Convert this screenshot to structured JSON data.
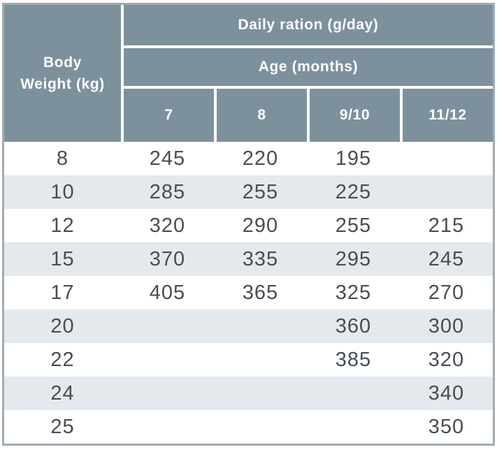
{
  "chart_data": {
    "type": "table",
    "title": "Daily ration (g/day)",
    "age_header": "Age (months)",
    "row_axis_label": "Body\nWeight (kg)",
    "columns": [
      "7",
      "8",
      "9/10",
      "11/12"
    ],
    "body_weights_kg": [
      8,
      10,
      12,
      15,
      17,
      20,
      22,
      24,
      25
    ],
    "values_g_per_day": [
      [
        245,
        220,
        195,
        null
      ],
      [
        285,
        255,
        225,
        null
      ],
      [
        320,
        290,
        255,
        215
      ],
      [
        370,
        335,
        295,
        245
      ],
      [
        405,
        365,
        325,
        270
      ],
      [
        null,
        null,
        360,
        300
      ],
      [
        null,
        null,
        385,
        320
      ],
      [
        null,
        null,
        null,
        340
      ],
      [
        null,
        null,
        null,
        350
      ]
    ]
  },
  "colors": {
    "header_bg": "#7d919d",
    "stripe_bg": "#e4e9ed",
    "header_text": "#ffffff",
    "body_text": "#474d54",
    "table_border": "#a1abb3"
  }
}
